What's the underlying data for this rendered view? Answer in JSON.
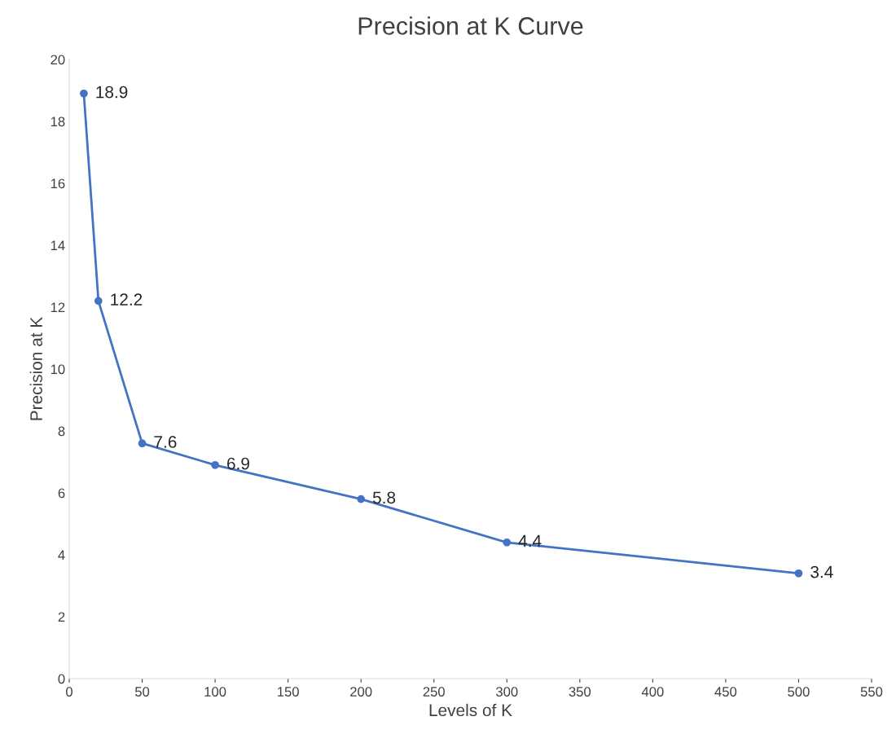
{
  "chart_data": {
    "type": "line",
    "title": "Precision at K Curve",
    "xlabel": "Levels of K",
    "ylabel": "Precision at K",
    "x": [
      10,
      20,
      50,
      100,
      200,
      300,
      500
    ],
    "series": [
      {
        "color": "#4472c4",
        "values": [
          18.9,
          12.2,
          7.6,
          6.9,
          5.8,
          4.4,
          3.4
        ]
      }
    ],
    "xlim": [
      0,
      550
    ],
    "xticks": [
      0,
      50,
      100,
      150,
      200,
      250,
      300,
      350,
      400,
      450,
      500,
      550
    ],
    "ylim": [
      0,
      20
    ],
    "yticks": [
      0,
      2,
      4,
      6,
      8,
      10,
      12,
      14,
      16,
      18,
      20
    ],
    "data_labels": true,
    "marker": "circle",
    "line_style": "solid",
    "grid": false,
    "legend": false
  }
}
